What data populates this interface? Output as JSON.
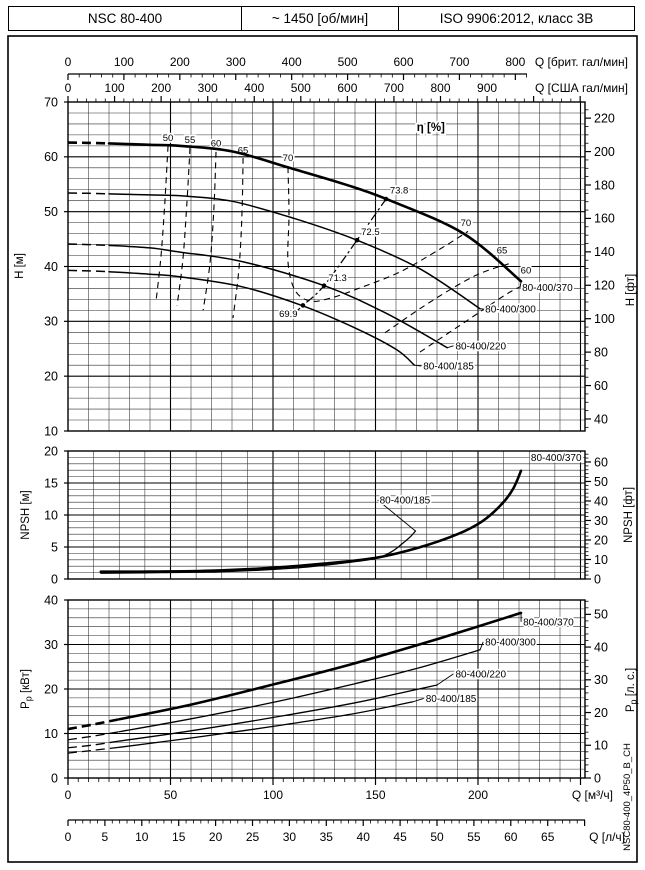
{
  "header": {
    "model": "NSC 80-400",
    "speed": "~ 1450 [об/мин]",
    "standard": "ISO 9906:2012, класс 3В"
  },
  "doc_code": "NSC80-400_4P50_B_CH",
  "colors": {
    "ink": "#000000",
    "grid_minor": "#2f2f2f",
    "paper": "#ffffff"
  },
  "top_axes": {
    "imperial": {
      "label": "Q [брит. гал/мин]",
      "ticks": [
        0,
        100,
        200,
        300,
        400,
        500,
        600,
        700,
        800
      ],
      "minor_step": 20
    },
    "us": {
      "label": "Q [США гал/мин]",
      "ticks": [
        0,
        100,
        200,
        300,
        400,
        500,
        600,
        700,
        800,
        900
      ],
      "minor_step": 20
    }
  },
  "bottom_axes": {
    "m3h": {
      "label": "Q [м³/ч]",
      "ticks": [
        0,
        50,
        100,
        150,
        200
      ],
      "minor_step": 5
    },
    "lh": {
      "label": "Q [л/ч]",
      "ticks": [
        0,
        5,
        10,
        15,
        20,
        25,
        30,
        35,
        40,
        45,
        50,
        55,
        60,
        65
      ],
      "minor_step": 1
    }
  },
  "chart_data": [
    {
      "id": "head",
      "type": "line",
      "title_overlay": "η [%]",
      "xlabel": "Q [м³/ч]",
      "x_minor_step": 10,
      "y_left": {
        "title": "H [м]",
        "min": 10,
        "max": 70,
        "ticks": [
          10,
          20,
          30,
          40,
          50,
          60,
          70
        ],
        "minor_step": 2
      },
      "y_right": {
        "title": "H [фт]",
        "ticks": [
          40,
          60,
          80,
          100,
          120,
          140,
          160,
          180,
          200,
          220
        ],
        "minor_step": 5
      },
      "series": [
        {
          "name": "80-400/370",
          "thick": true,
          "dash_pts": [
            [
              0,
              62.6
            ],
            [
              10,
              62.55
            ],
            [
              20,
              62.45
            ]
          ],
          "pts": [
            [
              20,
              62.45
            ],
            [
              40,
              62.2
            ],
            [
              55,
              62.0
            ],
            [
              80,
              61.0
            ],
            [
              108,
              58.0
            ],
            [
              135,
              55.0
            ],
            [
              156,
              52.2
            ],
            [
              193,
              46.0
            ],
            [
              221,
              37.3
            ]
          ],
          "label_at": [
            221.5,
            35.5
          ]
        },
        {
          "name": "80-400/300",
          "dash_pts": [
            [
              0,
              53.4
            ],
            [
              10,
              53.35
            ],
            [
              20,
              53.25
            ]
          ],
          "pts": [
            [
              20,
              53.25
            ],
            [
              40,
              53.05
            ],
            [
              55,
              52.9
            ],
            [
              80,
              51.9
            ],
            [
              110,
              48.8
            ],
            [
              141,
              44.8
            ],
            [
              172,
              39.5
            ],
            [
              201,
              32.3
            ]
          ],
          "label_at": [
            203.5,
            31.6
          ]
        },
        {
          "name": "80-400/220",
          "dash_pts": [
            [
              0,
              44.1
            ],
            [
              10,
              44.0
            ],
            [
              20,
              43.85
            ]
          ],
          "pts": [
            [
              20,
              43.85
            ],
            [
              40,
              43.4
            ],
            [
              55,
              42.6
            ],
            [
              85,
              40.9
            ],
            [
              125,
              36.5
            ],
            [
              155,
              31.5
            ],
            [
              185,
              25.2
            ]
          ],
          "label_at": [
            189,
            24.9
          ]
        },
        {
          "name": "80-400/185",
          "dash_pts": [
            [
              0,
              39.3
            ],
            [
              10,
              39.2
            ],
            [
              20,
              39.05
            ]
          ],
          "pts": [
            [
              20,
              39.05
            ],
            [
              40,
              38.6
            ],
            [
              55,
              38.1
            ],
            [
              85,
              36.3
            ],
            [
              114,
              32.9
            ],
            [
              140,
              28.8
            ],
            [
              160,
              24.9
            ],
            [
              169,
              22.0
            ]
          ],
          "label_at": [
            173.3,
            21.2
          ]
        }
      ],
      "efficiency_contours": [
        {
          "label": "50",
          "points": [
            [
              48.8,
              62.0
            ],
            [
              47.3,
              52.1
            ],
            [
              45.4,
              42.1
            ],
            [
              42.9,
              33.5
            ]
          ],
          "label_at": [
            48.8,
            62.9
          ]
        },
        {
          "label": "55",
          "points": [
            [
              59.5,
              61.6
            ],
            [
              58.0,
              51.6
            ],
            [
              56.1,
              41.5
            ],
            [
              53.2,
              32.9
            ]
          ],
          "label_at": [
            59.5,
            62.5
          ]
        },
        {
          "label": "60",
          "points": [
            [
              72.2,
              60.9
            ],
            [
              71.2,
              51.0
            ],
            [
              69.3,
              40.8
            ],
            [
              65.9,
              32.0
            ]
          ],
          "label_at": [
            72.2,
            61.9
          ]
        },
        {
          "label": "65",
          "points": [
            [
              85.4,
              59.8
            ],
            [
              84.9,
              49.9
            ],
            [
              83.4,
              39.7
            ],
            [
              80.5,
              30.6
            ]
          ],
          "label_at": [
            85.4,
            60.6
          ]
        },
        {
          "label": "70",
          "points": [
            [
              107.3,
              58.1
            ],
            [
              107.8,
              49.4
            ],
            [
              107.3,
              40.8
            ],
            [
              110.7,
              35.7
            ],
            [
              118,
              33.7
            ],
            [
              127.8,
              34.2
            ],
            [
              142.4,
              36.1
            ],
            [
              161.9,
              39.0
            ],
            [
              181.5,
              43.2
            ],
            [
              195.1,
              46.4
            ]
          ],
          "label_at": [
            107.3,
            59.2
          ]
        },
        {
          "label": "70",
          "points": [],
          "label_at": [
            194.1,
            47.4
          ]
        },
        {
          "label": "65",
          "points": [
            [
              154.6,
              27.9
            ],
            [
              176.6,
              33.5
            ],
            [
              198.5,
              38.3
            ],
            [
              215.0,
              40.5
            ]
          ],
          "label_at": [
            211.7,
            42.4
          ]
        },
        {
          "label": "60",
          "points": [
            [
              171.7,
              24.4
            ],
            [
              193.7,
              29.9
            ],
            [
              213.2,
              34.8
            ],
            [
              220.5,
              36.3
            ]
          ],
          "label_at": [
            223.4,
            38.7
          ]
        }
      ],
      "bep": {
        "line": [
          [
            110,
            31.3
          ],
          [
            114.6,
            32.9
          ],
          [
            124.9,
            36.5
          ],
          [
            141,
            44.8
          ],
          [
            155.1,
            52.3
          ]
        ],
        "points": [
          {
            "value": "69.9",
            "at": [
              114.6,
              32.9
            ],
            "label_at": [
              112.0,
              30.8
            ],
            "anchor": "end"
          },
          {
            "value": "71.3",
            "at": [
              124.9,
              36.5
            ],
            "label_at": [
              127.0,
              37.4
            ],
            "anchor": "start"
          },
          {
            "value": "72.5",
            "at": [
              141.0,
              44.8
            ],
            "label_at": [
              143.0,
              45.7
            ],
            "anchor": "start"
          },
          {
            "value": "73.8",
            "at": [
              155.1,
              52.3
            ],
            "label_at": [
              157.0,
              53.3
            ],
            "anchor": "start"
          }
        ]
      }
    },
    {
      "id": "npsh",
      "type": "line",
      "xlabel": "Q [м³/ч]",
      "x_minor_step": 12.5,
      "y_left": {
        "title": "NPSH [м]",
        "min": 0,
        "max": 20,
        "ticks": [
          0,
          5,
          10,
          15,
          20
        ],
        "minor_step": 1
      },
      "y_right": {
        "title": "NPSH [фт]",
        "ticks": [
          0,
          10,
          20,
          30,
          40,
          50,
          60
        ],
        "minor_step": 2
      },
      "series": [
        {
          "name": "80-400/370",
          "thick": true,
          "pts": [
            [
              16,
              1.15
            ],
            [
              40,
              1.15
            ],
            [
              70,
              1.3
            ],
            [
              100,
              1.75
            ],
            [
              125,
              2.4
            ],
            [
              150,
              3.3
            ],
            [
              170,
              4.8
            ],
            [
              190,
              7.0
            ],
            [
              202,
              9.0
            ],
            [
              211,
              11.5
            ],
            [
              217,
              14.0
            ],
            [
              221,
              16.9
            ]
          ],
          "label_at": [
            250.5,
            18.4
          ],
          "label_anchor": "end"
        },
        {
          "name": "80-400/185",
          "pts": [
            [
              16,
              0.9
            ],
            [
              45,
              1.0
            ],
            [
              80,
              1.2
            ],
            [
              110,
              1.7
            ],
            [
              132,
              2.4
            ],
            [
              150,
              3.2
            ],
            [
              158,
              4.3
            ],
            [
              163,
              5.5
            ],
            [
              167,
              6.6
            ],
            [
              169.5,
              7.5
            ]
          ],
          "label_at": [
            152,
            11.8
          ]
        }
      ]
    },
    {
      "id": "power",
      "type": "line",
      "xlabel": "Q [м³/ч]",
      "x_minor_step": 10,
      "y_left": {
        "title_base": "P",
        "title_sub": "р",
        "title_unit": " [кВт]",
        "min": 0,
        "max": 40,
        "ticks": [
          0,
          10,
          20,
          30,
          40
        ],
        "minor_step": 2
      },
      "y_right": {
        "title_base": "P",
        "title_sub": "р",
        "title_unit": " [л. с.]",
        "ticks": [
          0,
          10,
          20,
          30,
          40,
          50
        ],
        "minor_step": 2
      },
      "series": [
        {
          "name": "80-400/370",
          "thick": true,
          "dash_pts": [
            [
              0,
              11.0
            ],
            [
              12,
              12.0
            ],
            [
              25,
              13.2
            ]
          ],
          "pts": [
            [
              25,
              13.2
            ],
            [
              60,
              16.5
            ],
            [
              100,
              21.0
            ],
            [
              140,
              25.8
            ],
            [
              180,
              31.2
            ],
            [
              221,
              37.1
            ]
          ],
          "label_at": [
            222,
            34.3
          ]
        },
        {
          "name": "80-400/300",
          "dash_pts": [
            [
              0,
              8.6
            ],
            [
              12,
              9.4
            ],
            [
              25,
              10.4
            ]
          ],
          "pts": [
            [
              25,
              10.4
            ],
            [
              60,
              13.3
            ],
            [
              100,
              17.0
            ],
            [
              140,
              21.2
            ],
            [
              170,
              24.6
            ],
            [
              201,
              28.8
            ]
          ],
          "label_at": [
            203.5,
            29.8
          ]
        },
        {
          "name": "80-400/220",
          "dash_pts": [
            [
              0,
              6.8
            ],
            [
              12,
              7.4
            ],
            [
              25,
              8.3
            ]
          ],
          "pts": [
            [
              25,
              8.3
            ],
            [
              60,
              10.6
            ],
            [
              100,
              13.6
            ],
            [
              140,
              16.9
            ],
            [
              180,
              20.9
            ]
          ],
          "label_at": [
            189,
            22.6
          ]
        },
        {
          "name": "80-400/185",
          "dash_pts": [
            [
              0,
              5.6
            ],
            [
              12,
              6.2
            ],
            [
              25,
              6.9
            ]
          ],
          "pts": [
            [
              25,
              6.9
            ],
            [
              60,
              9.0
            ],
            [
              100,
              11.6
            ],
            [
              140,
              14.5
            ],
            [
              168,
              17.1
            ]
          ],
          "label_at": [
            174.5,
            17.1
          ]
        }
      ]
    }
  ]
}
